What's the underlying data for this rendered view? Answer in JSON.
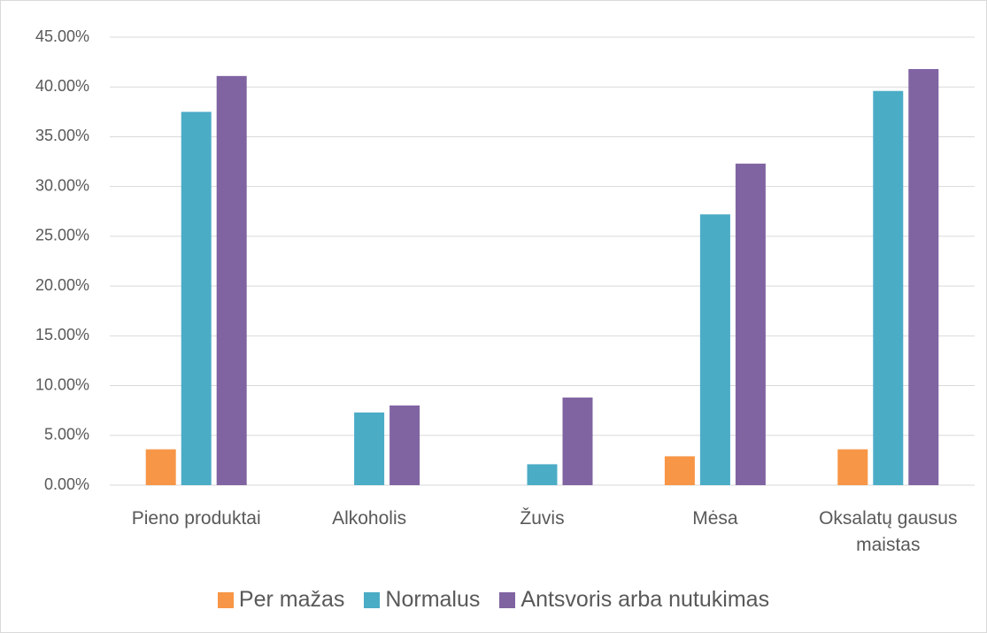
{
  "chart_data": {
    "type": "bar",
    "categories": [
      "Pieno produktai",
      "Alkoholis",
      "Žuvis",
      "Mėsa",
      "Oksalatų gausus maistas"
    ],
    "series": [
      {
        "name": "Per mažas",
        "color": "#f79646",
        "values": [
          3.6,
          0,
          0,
          2.9,
          3.6
        ]
      },
      {
        "name": "Normalus",
        "color": "#4bacc6",
        "values": [
          37.5,
          7.3,
          2.1,
          27.2,
          39.6
        ]
      },
      {
        "name": "Antsvoris arba nutukimas",
        "color": "#8064a2",
        "values": [
          41.1,
          8.0,
          8.8,
          32.3,
          41.8
        ]
      }
    ],
    "ylim": [
      0,
      45
    ],
    "yticks": [
      {
        "value": 0,
        "label": "0.00%"
      },
      {
        "value": 5,
        "label": "5.00%"
      },
      {
        "value": 10,
        "label": "10.00%"
      },
      {
        "value": 15,
        "label": "15.00%"
      },
      {
        "value": 20,
        "label": "20.00%"
      },
      {
        "value": 25,
        "label": "25.00%"
      },
      {
        "value": 30,
        "label": "30.00%"
      },
      {
        "value": 35,
        "label": "35.00%"
      },
      {
        "value": 40,
        "label": "40.00%"
      },
      {
        "value": 45,
        "label": "45.00%"
      }
    ],
    "grid": true,
    "legend": "bottom"
  }
}
